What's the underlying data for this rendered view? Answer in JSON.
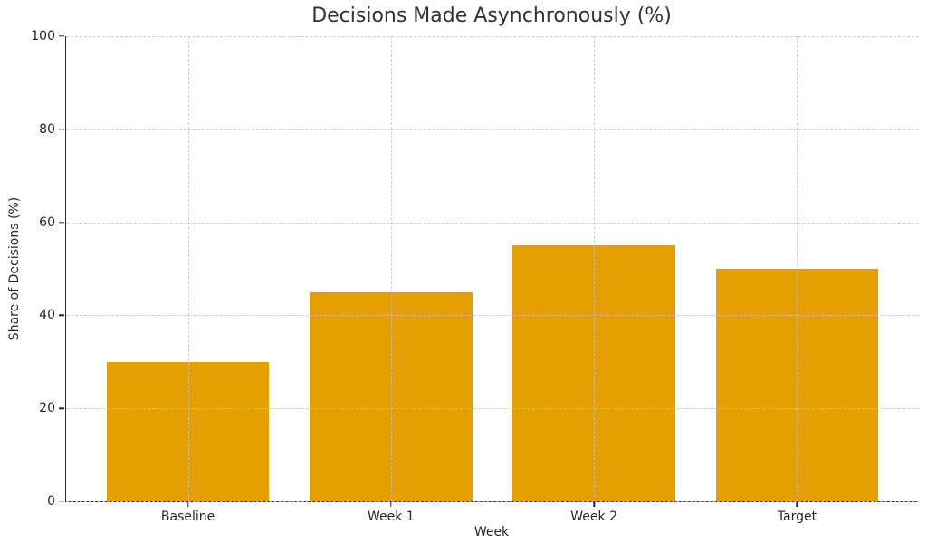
{
  "chart_data": {
    "type": "bar",
    "title": "Decisions Made Asynchronously (%)",
    "xlabel": "Week",
    "ylabel": "Share of Decisions (%)",
    "categories": [
      "Baseline",
      "Week 1",
      "Week 2",
      "Target"
    ],
    "values": [
      30,
      45,
      55,
      50
    ],
    "ylim": [
      0,
      100
    ],
    "yticks": [
      0,
      20,
      40,
      60,
      80,
      100
    ],
    "xlim": [
      -0.6,
      3.6
    ],
    "bar_width_fraction": 0.8,
    "bar_color": "#E69F00",
    "grid": true,
    "grid_style": "dashed",
    "grid_over_bars": true,
    "axis_color": "#262626",
    "background_color": "#ffffff",
    "legend": "none"
  }
}
